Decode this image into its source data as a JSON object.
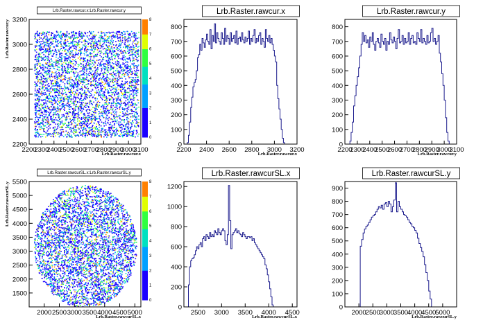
{
  "chart_data": [
    {
      "type": "heatmap",
      "title": "Lrb.Raster.rawcur.x:Lrb.Raster.rawcur.y",
      "xlabel": "Lrb.Raster.rawcur.x",
      "ylabel": "Lrb.Raster.rawcur.y",
      "xlim": [
        2200,
        3100
      ],
      "ylim": [
        2200,
        3200
      ],
      "x_ticks": [
        "2200",
        "2300",
        "2400",
        "2500",
        "2600",
        "2700",
        "2800",
        "2900",
        "3000",
        "3100"
      ],
      "y_ticks": [
        "2200",
        "2400",
        "2600",
        "2800",
        "3000",
        "3200"
      ],
      "x_tick_values": [
        2200,
        2300,
        2400,
        2500,
        2600,
        2700,
        2800,
        2900,
        3000,
        3100
      ],
      "y_tick_values": [
        2200,
        2400,
        2600,
        2800,
        3000,
        3200
      ],
      "shape": "rectangle",
      "region": {
        "xmin": 2240,
        "xmax": 3080,
        "ymin": 2260,
        "ymax": 3110
      },
      "zlim": [
        0,
        8
      ],
      "z_ticks": [
        "0",
        "1",
        "2",
        "3",
        "4",
        "5",
        "6",
        "7",
        "8"
      ]
    },
    {
      "type": "histogram",
      "title": "Lrb.Raster.rawcur.x",
      "xlabel": "Lrb.Raster.rawcur.x",
      "xlim": [
        2200,
        3200
      ],
      "ylim": [
        0,
        850
      ],
      "x_ticks": [
        "2200",
        "2400",
        "2600",
        "2800",
        "3000",
        "3200"
      ],
      "y_ticks": [
        "0",
        "100",
        "200",
        "300",
        "400",
        "500",
        "600",
        "700",
        "800"
      ],
      "x_tick_values": [
        2200,
        2400,
        2600,
        2800,
        3000,
        3200
      ],
      "y_tick_values": [
        0,
        100,
        200,
        300,
        400,
        500,
        600,
        700,
        800
      ],
      "bin_start": 2210,
      "bin_width": 10,
      "values": [
        0,
        0,
        10,
        60,
        150,
        250,
        320,
        390,
        420,
        440,
        500,
        590,
        610,
        680,
        640,
        720,
        690,
        660,
        710,
        750,
        700,
        680,
        780,
        650,
        740,
        700,
        820,
        690,
        760,
        720,
        700,
        680,
        760,
        720,
        680,
        790,
        700,
        740,
        720,
        680,
        760,
        700,
        720,
        740,
        690,
        770,
        680,
        720,
        730,
        700,
        760,
        710,
        690,
        730,
        700,
        720,
        770,
        680,
        720,
        700,
        740,
        780,
        690,
        720,
        700,
        740,
        760,
        680,
        720,
        700,
        660,
        780,
        720,
        700,
        740,
        690,
        720,
        680,
        640,
        600,
        560,
        400,
        310,
        240,
        170,
        100,
        40,
        10,
        0
      ]
    },
    {
      "type": "histogram",
      "title": "Lrb.Raster.rawcur.y",
      "xlabel": "Lrb.Raster.rawcur.y",
      "xlim": [
        2200,
        3100
      ],
      "ylim": [
        0,
        850
      ],
      "x_ticks": [
        "2200",
        "2300",
        "2400",
        "2500",
        "2600",
        "2700",
        "2800",
        "2900",
        "3000",
        "3100"
      ],
      "y_ticks": [
        "0",
        "100",
        "200",
        "300",
        "400",
        "500",
        "600",
        "700",
        "800"
      ],
      "x_tick_values": [
        2200,
        2300,
        2400,
        2500,
        2600,
        2700,
        2800,
        2900,
        3000,
        3100
      ],
      "y_tick_values": [
        0,
        100,
        200,
        300,
        400,
        500,
        600,
        700,
        800
      ],
      "bin_start": 2240,
      "bin_width": 10,
      "values": [
        20,
        80,
        150,
        260,
        330,
        400,
        460,
        520,
        600,
        680,
        760,
        700,
        740,
        690,
        710,
        660,
        730,
        700,
        760,
        680,
        640,
        700,
        720,
        690,
        660,
        750,
        700,
        680,
        720,
        640,
        700,
        680,
        760,
        710,
        690,
        730,
        700,
        650,
        720,
        780,
        690,
        700,
        740,
        680,
        720,
        690,
        700,
        760,
        680,
        720,
        740,
        690,
        700,
        680,
        760,
        720,
        700,
        780,
        690,
        720,
        700,
        680,
        740,
        690,
        700,
        760,
        790,
        700,
        720,
        680,
        700,
        740,
        620,
        560,
        480,
        400,
        300,
        180,
        80,
        20,
        0
      ]
    },
    {
      "type": "heatmap",
      "title": "Lrb.Raster.rawcurSL.x:Lrb.Raster.rawcurSL.y",
      "xlabel": "Lrb.Raster.rawcurSL.x",
      "ylabel": "Lrb.Raster.rawcurSL.y",
      "xlim": [
        1500,
        5200
      ],
      "ylim": [
        1000,
        5500
      ],
      "x_ticks": [
        "2000",
        "2500",
        "3000",
        "3500",
        "4000",
        "4500",
        "5000"
      ],
      "y_ticks": [
        "1500",
        "2000",
        "2500",
        "3000",
        "3500",
        "4000",
        "4500",
        "5000",
        "5500"
      ],
      "x_tick_values": [
        2000,
        2500,
        3000,
        3500,
        4000,
        4500,
        5000
      ],
      "y_tick_values": [
        1500,
        2000,
        2500,
        3000,
        3500,
        4000,
        4500,
        5000,
        5500
      ],
      "shape": "disc",
      "region": {
        "cx": 3350,
        "cy": 3180,
        "rx": 1700,
        "ry": 2200
      },
      "zlim": [
        0,
        8
      ],
      "z_ticks": [
        "0",
        "1",
        "2",
        "3",
        "4",
        "5",
        "6",
        "7",
        "8"
      ]
    },
    {
      "type": "histogram",
      "title": "Lrb.Raster.rawcurSL.x",
      "xlabel": "Lrb.Raster.rawcurSL.x",
      "xlim": [
        2200,
        4600
      ],
      "ylim": [
        0,
        1250
      ],
      "x_ticks": [
        "2500",
        "3000",
        "3500",
        "4000",
        "4500"
      ],
      "y_ticks": [
        "0",
        "200",
        "400",
        "600",
        "800",
        "1000",
        "1200"
      ],
      "x_tick_values": [
        2500,
        3000,
        3500,
        4000,
        4500
      ],
      "y_tick_values": [
        0,
        200,
        400,
        600,
        800,
        1000,
        1200
      ],
      "bin_start": 2270,
      "bin_width": 25,
      "values": [
        0,
        220,
        400,
        460,
        480,
        490,
        520,
        560,
        600,
        580,
        620,
        640,
        600,
        680,
        700,
        660,
        720,
        700,
        680,
        740,
        700,
        720,
        700,
        760,
        740,
        720,
        780,
        740,
        720,
        760,
        780,
        760,
        660,
        620,
        720,
        1210,
        860,
        580,
        720,
        740,
        760,
        780,
        740,
        760,
        730,
        720,
        700,
        740,
        720,
        700,
        680,
        700,
        700,
        690,
        700,
        660,
        680,
        640,
        620,
        600,
        580,
        560,
        540,
        520,
        500,
        480,
        420,
        380,
        320,
        250,
        180,
        100,
        20,
        0,
        0,
        0
      ]
    },
    {
      "type": "histogram",
      "title": "Lrb.Raster.rawcurSL.y",
      "xlabel": "Lrb.Raster.rawcurSL.y",
      "xlim": [
        1500,
        5500
      ],
      "ylim": [
        0,
        950
      ],
      "x_ticks": [
        "2000",
        "2500",
        "3000",
        "3500",
        "4000",
        "4500",
        "5000"
      ],
      "y_ticks": [
        "0",
        "100",
        "200",
        "300",
        "400",
        "500",
        "600",
        "700",
        "800",
        "900"
      ],
      "x_tick_values": [
        2000,
        2500,
        3000,
        3500,
        4000,
        4500,
        5000
      ],
      "y_tick_values": [
        0,
        100,
        200,
        300,
        400,
        500,
        600,
        700,
        800,
        900
      ],
      "bin_start": 2000,
      "bin_width": 50,
      "values": [
        0,
        460,
        510,
        560,
        590,
        610,
        620,
        640,
        660,
        680,
        690,
        700,
        720,
        740,
        760,
        750,
        770,
        740,
        780,
        790,
        760,
        800,
        780,
        720,
        760,
        810,
        940,
        720,
        800,
        760,
        740,
        720,
        700,
        690,
        680,
        660,
        640,
        630,
        610,
        600,
        580,
        560,
        520,
        480,
        450,
        420,
        380,
        320,
        260,
        200,
        120,
        60,
        0
      ]
    }
  ]
}
